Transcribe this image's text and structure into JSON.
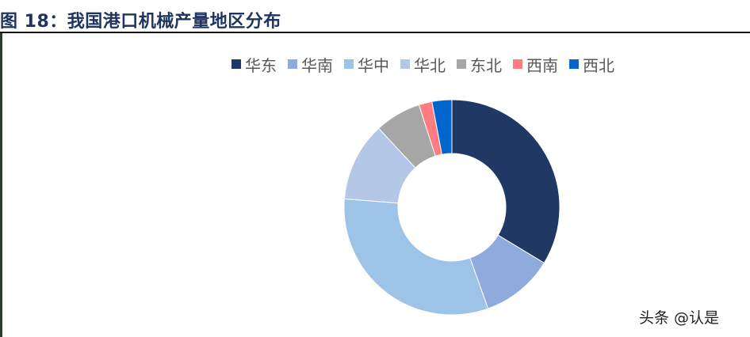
{
  "figure": {
    "title": "图 18：我国港口机械产量地区分布"
  },
  "chart_data": {
    "type": "pie",
    "donut": true,
    "title": "",
    "categories": [
      "华东",
      "华南",
      "华中",
      "华北",
      "东北",
      "西南",
      "西北"
    ],
    "values": [
      34,
      11,
      32,
      12,
      7,
      2,
      3
    ],
    "colors": [
      "#1f3864",
      "#8faadc",
      "#9dc3e6",
      "#b4c7e7",
      "#a6a6a6",
      "#ff7c80",
      "#0066cc"
    ],
    "legend_position": "top"
  },
  "watermark": "头条 @认是"
}
